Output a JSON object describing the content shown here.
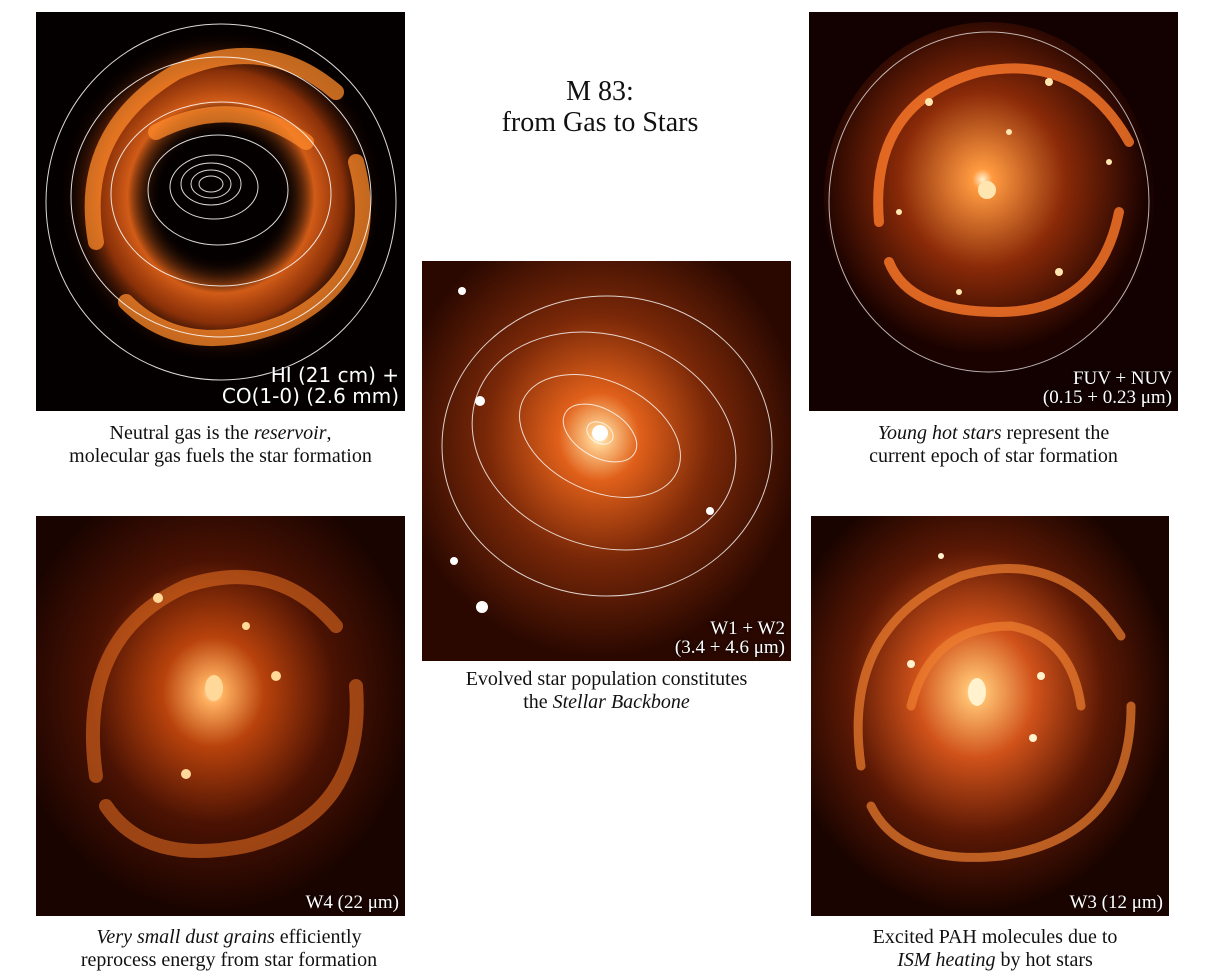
{
  "title": {
    "line1": "M 83:",
    "line2": "from Gas to Stars"
  },
  "panels": {
    "gas": {
      "band_line1": "HI (21 cm) +",
      "band_line2": "CO(1-0) (2.6 mm)",
      "caption_pre": "Neutral gas is the ",
      "caption_em": "reservoir",
      "caption_post": ",",
      "caption_line2": "molecular gas fuels the star formation"
    },
    "uv": {
      "band_line1": "FUV + NUV",
      "band_line2": "(0.15 + 0.23 μm)",
      "caption_em": "Young hot stars",
      "caption_post": " represent the",
      "caption_line2": "current epoch of star formation"
    },
    "w12": {
      "band_line1": "W1 + W2",
      "band_line2": "(3.4 + 4.6 μm)",
      "caption_line1": "Evolved star population constitutes",
      "caption_pre2": "the ",
      "caption_em2": "Stellar Backbone"
    },
    "w4": {
      "band": "W4  (22 μm)",
      "caption_em": "Very small dust grains",
      "caption_post": " efficiently",
      "caption_line2": "reprocess energy from star formation"
    },
    "w3": {
      "band": "W3  (12 μm)",
      "caption_line1": "Excited PAH molecules due to",
      "caption_em2": "ISM heating",
      "caption_post2": " by hot stars"
    }
  },
  "colors": {
    "background": "#ffffff",
    "image_dark": "#0a0000",
    "glow": "#ff7a1a",
    "core": "#fff4d0",
    "contour": "#ffffff"
  }
}
